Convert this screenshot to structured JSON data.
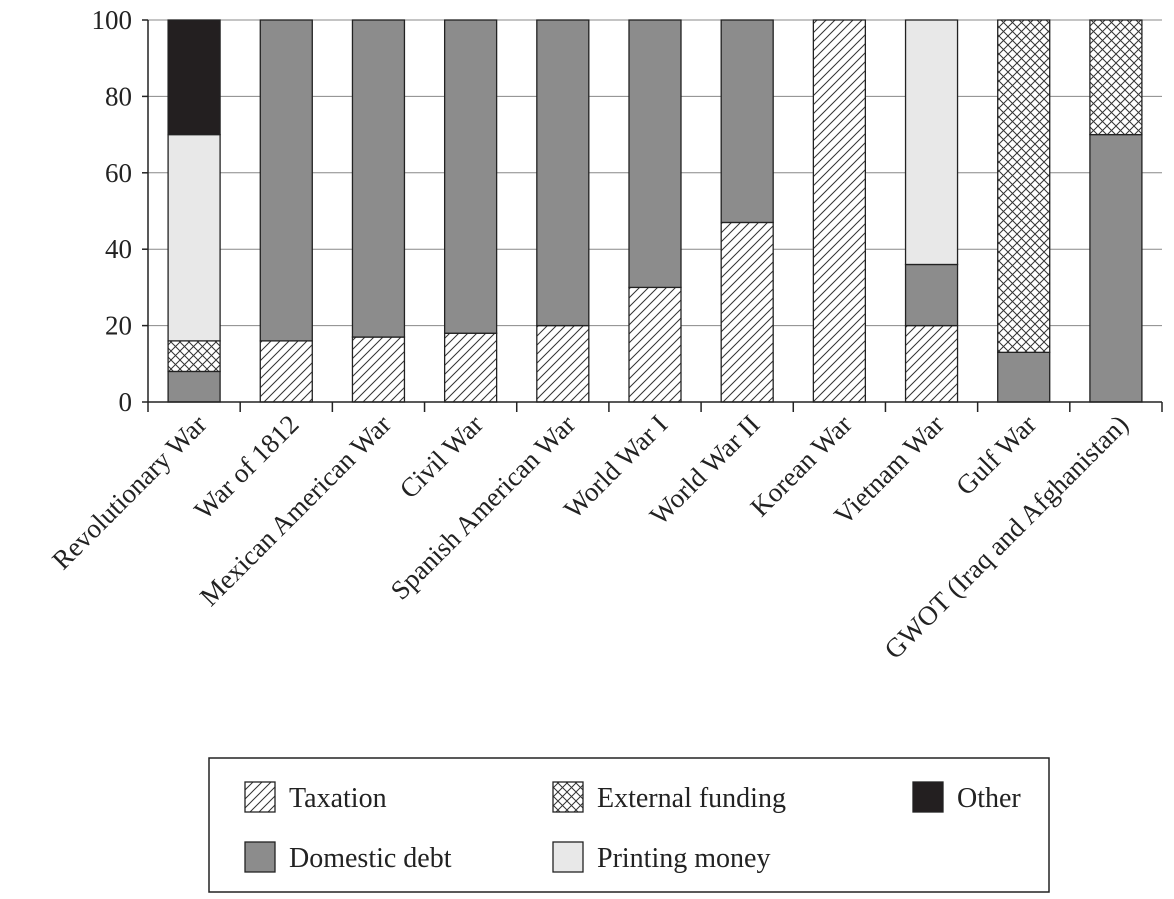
{
  "chart_data": {
    "type": "bar",
    "stacked": true,
    "title": "",
    "xlabel": "",
    "ylabel": "",
    "ylim": [
      0,
      100
    ],
    "yticks": [
      0,
      20,
      40,
      60,
      80,
      100
    ],
    "grid": true,
    "legend_position": "bottom",
    "categories": [
      "Revolutionary War",
      "War of 1812",
      "Mexican American War",
      "Civil War",
      "Spanish American War",
      "World War I",
      "World War II",
      "Korean War",
      "Vietnam War",
      "Gulf War",
      "GWOT (Iraq and Afghanistan)"
    ],
    "series": [
      {
        "name": "Taxation",
        "pattern": "hatch",
        "color": "#ffffff",
        "values": [
          0,
          16,
          17,
          18,
          20,
          30,
          47,
          100,
          20,
          0,
          0
        ]
      },
      {
        "name": "Domestic debt",
        "pattern": "solid",
        "color": "#8c8c8c",
        "values": [
          8,
          84,
          83,
          82,
          80,
          70,
          53,
          0,
          16,
          13,
          70
        ]
      },
      {
        "name": "External funding",
        "pattern": "crosshatch",
        "color": "#ffffff",
        "values": [
          8,
          0,
          0,
          0,
          0,
          0,
          0,
          0,
          0,
          87,
          30
        ]
      },
      {
        "name": "Printing money",
        "pattern": "solid",
        "color": "#e8e8e8",
        "values": [
          54,
          0,
          0,
          0,
          0,
          0,
          0,
          0,
          64,
          0,
          0
        ]
      },
      {
        "name": "Other",
        "pattern": "solid",
        "color": "#231f20",
        "values": [
          30,
          0,
          0,
          0,
          0,
          0,
          0,
          0,
          0,
          0,
          0
        ]
      }
    ],
    "legend_order": [
      "Taxation",
      "External funding",
      "Other",
      "Domestic debt",
      "Printing money"
    ]
  }
}
